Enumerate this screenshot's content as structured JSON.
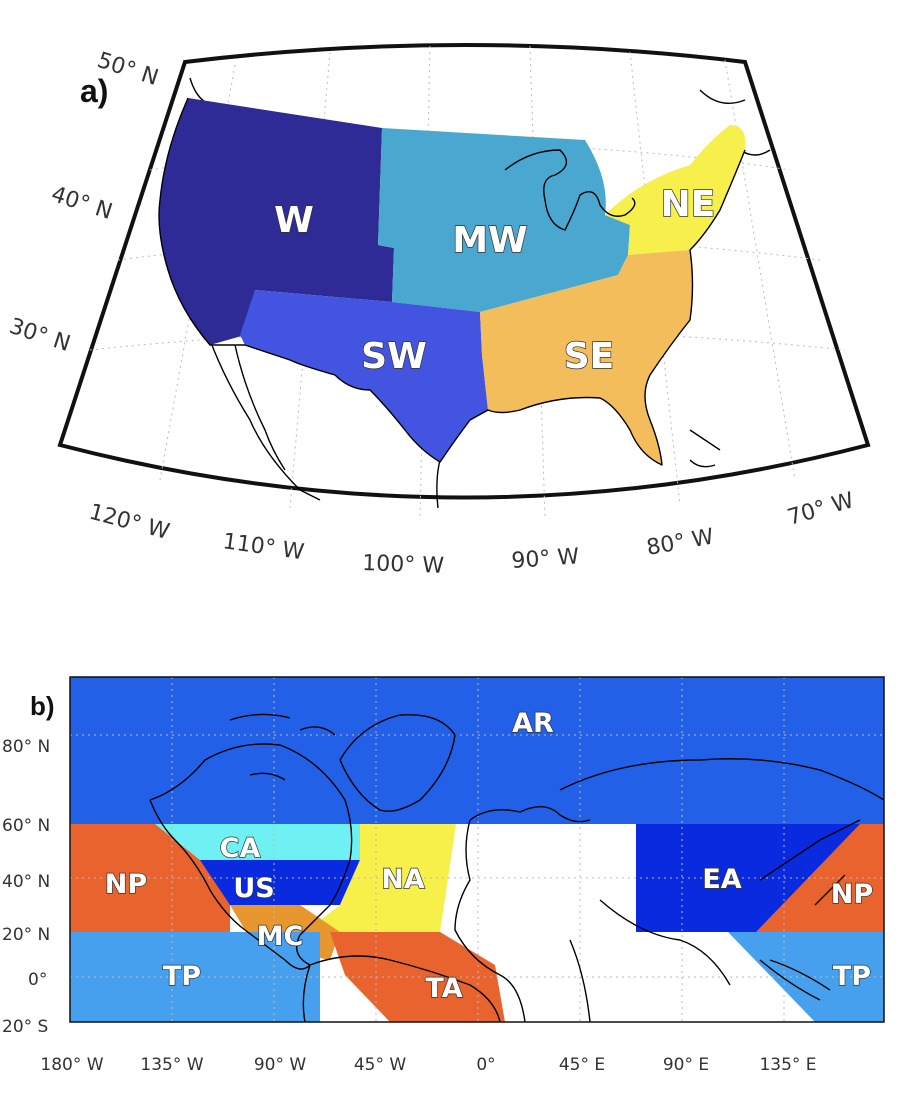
{
  "panel_a": {
    "letter": "a)",
    "lat_labels": [
      "50° N",
      "40° N",
      "30° N"
    ],
    "lon_labels": [
      "120° W",
      "110° W",
      "100° W",
      "90° W",
      "80° W",
      "70° W"
    ],
    "regions": [
      {
        "code": "W",
        "color": "#2e2a96"
      },
      {
        "code": "MW",
        "color": "#4aa8d0"
      },
      {
        "code": "NE",
        "color": "#f6ef4c"
      },
      {
        "code": "SW",
        "color": "#4355e0"
      },
      {
        "code": "SE",
        "color": "#f2bd5a"
      }
    ]
  },
  "panel_b": {
    "letter": "b)",
    "lat_labels": [
      "80° N",
      "60° N",
      "40° N",
      "20° N",
      "0°",
      "20° S"
    ],
    "lon_labels": [
      "180° W",
      "135° W",
      "90° W",
      "45° W",
      "0°",
      "45° E",
      "90° E",
      "135° E"
    ],
    "regions": [
      {
        "code": "AR",
        "color": "#2260e8"
      },
      {
        "code": "CA",
        "color": "#6ff0f2"
      },
      {
        "code": "US",
        "color": "#0a2ae0"
      },
      {
        "code": "NA",
        "color": "#f7ef4a"
      },
      {
        "code": "NP",
        "color": "#e8632e"
      },
      {
        "code": "MC",
        "color": "#e8962e"
      },
      {
        "code": "TP",
        "color": "#47a0ee"
      },
      {
        "code": "TA",
        "color": "#e8632e"
      },
      {
        "code": "EA",
        "color": "#0a2ae0"
      },
      {
        "code": "NP",
        "color": "#e8632e"
      },
      {
        "code": "TP",
        "color": "#47a0ee"
      }
    ]
  }
}
